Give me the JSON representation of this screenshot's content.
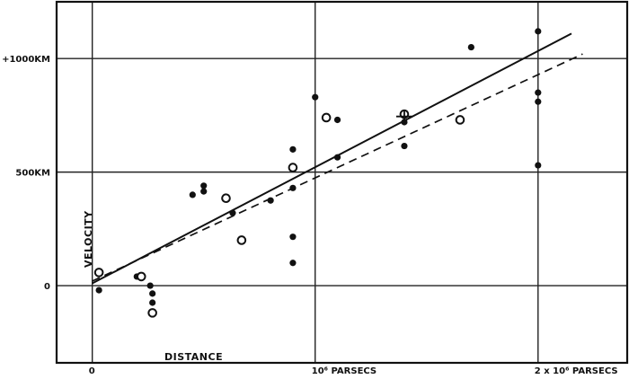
{
  "chart_data": {
    "type": "scatter",
    "title": "",
    "xlabel": "DISTANCE",
    "ylabel": "VELOCITY",
    "xlim": [
      -0.16,
      2.4
    ],
    "ylim": [
      -340,
      1250
    ],
    "grid": true,
    "x_ticks": [
      {
        "value": 0,
        "label": "0"
      },
      {
        "value": 1,
        "label": "10⁶ PARSECS"
      },
      {
        "value": 2,
        "label": "2 x 10⁶ PARSECS"
      }
    ],
    "y_ticks": [
      {
        "value": 0,
        "label": "0"
      },
      {
        "value": 500,
        "label": "500KM"
      },
      {
        "value": 1000,
        "label": "+1000KM"
      }
    ],
    "series": [
      {
        "marker": "filled-circle",
        "points": [
          [
            0.03,
            -20
          ],
          [
            0.2,
            40
          ],
          [
            0.26,
            0
          ],
          [
            0.27,
            -35
          ],
          [
            0.27,
            -75
          ],
          [
            0.45,
            400
          ],
          [
            0.5,
            415
          ],
          [
            0.5,
            440
          ],
          [
            0.63,
            320
          ],
          [
            0.8,
            375
          ],
          [
            0.9,
            430
          ],
          [
            0.9,
            600
          ],
          [
            0.9,
            215
          ],
          [
            0.9,
            100
          ],
          [
            1.0,
            830
          ],
          [
            1.1,
            730
          ],
          [
            1.1,
            565
          ],
          [
            1.4,
            615
          ],
          [
            1.4,
            720
          ],
          [
            1.7,
            1050
          ],
          [
            2.0,
            1120
          ],
          [
            2.0,
            850
          ],
          [
            2.0,
            810
          ],
          [
            2.0,
            530
          ]
        ]
      },
      {
        "marker": "open-circle",
        "points": [
          [
            0.03,
            58
          ],
          [
            0.22,
            40
          ],
          [
            0.27,
            -120
          ],
          [
            0.6,
            385
          ],
          [
            0.67,
            200
          ],
          [
            0.9,
            520
          ],
          [
            1.05,
            740
          ],
          [
            1.4,
            755
          ],
          [
            1.65,
            730
          ]
        ]
      },
      {
        "marker": "cross",
        "points": [
          [
            1.4,
            745
          ]
        ]
      }
    ],
    "lines": [
      {
        "style": "solid",
        "x": [
          0,
          2.15
        ],
        "y": [
          10,
          1110
        ]
      },
      {
        "style": "dashed",
        "x": [
          0,
          2.2
        ],
        "y": [
          20,
          1020
        ]
      }
    ]
  }
}
